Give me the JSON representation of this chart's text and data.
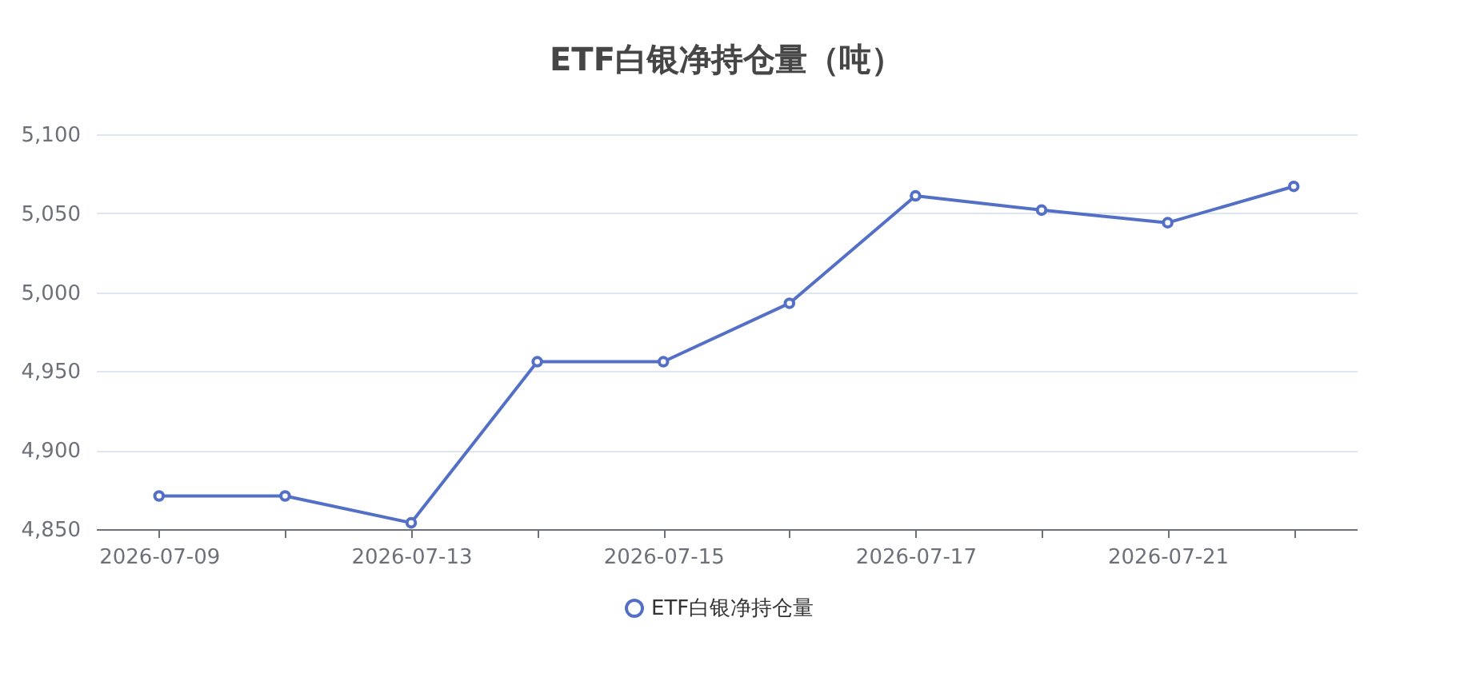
{
  "chart_data": {
    "type": "line",
    "title": "ETF白银净持仓量（吨）",
    "categories": [
      "2026-07-09",
      null,
      "2026-07-13",
      null,
      "2026-07-15",
      null,
      "2026-07-17",
      null,
      "2026-07-21",
      null
    ],
    "series": [
      {
        "name": "ETF白银净持仓量",
        "color": "#5470c6",
        "values": [
          4871,
          4871,
          4854,
          4956,
          4956,
          4993,
          5061,
          5052,
          5044,
          5067
        ]
      }
    ],
    "ylim": [
      4850,
      5100
    ],
    "yticks": [
      {
        "value": 4850,
        "label": "4,850"
      },
      {
        "value": 4900,
        "label": "4,900"
      },
      {
        "value": 4950,
        "label": "4,950"
      },
      {
        "value": 5000,
        "label": "5,000"
      },
      {
        "value": 5050,
        "label": "5,050"
      },
      {
        "value": 5100,
        "label": "5,100"
      }
    ],
    "grid": "y",
    "legend": "bottom",
    "marker": "circle",
    "line_style": "solid"
  }
}
